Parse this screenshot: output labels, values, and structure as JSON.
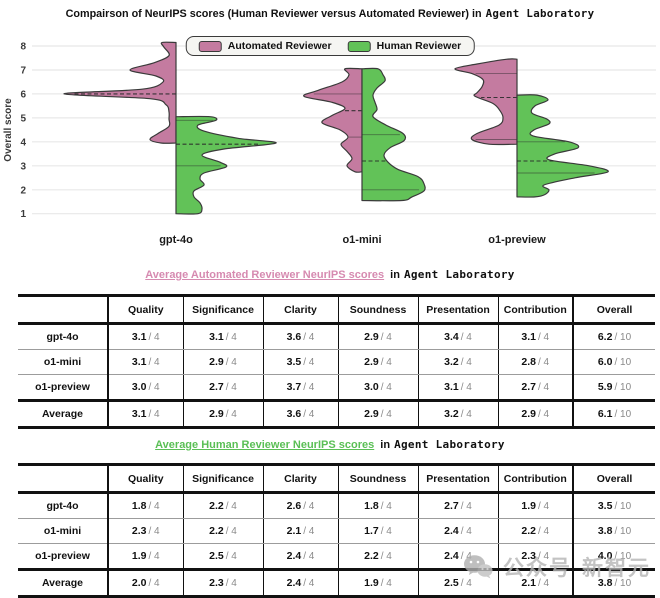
{
  "header": {
    "title_main": "Compairson of NeurIPS scores (Human Reviewer versus Automated Reviewer) in",
    "title_code": "Agent Laboratory"
  },
  "chart_data": {
    "type": "violin",
    "title": "Compairson of NeurIPS scores (Human Reviewer versus Automated Reviewer) in Agent Laboratory",
    "ylabel": "Overall score",
    "ylim": [
      1,
      8
    ],
    "yticks": [
      1,
      2,
      3,
      4,
      5,
      6,
      7,
      8
    ],
    "grid": true,
    "legend_position": "top-center",
    "categories": [
      "gpt-4o",
      "o1-mini",
      "o1-preview"
    ],
    "series": [
      {
        "name": "Automated Reviewer",
        "color": "#c47ba0",
        "side": "left"
      },
      {
        "name": "Human Reviewer",
        "color": "#62c258",
        "side": "right"
      }
    ],
    "violins": [
      {
        "category": "gpt-4o",
        "series": "Automated Reviewer",
        "profile": [
          [
            8.15,
            14
          ],
          [
            7.95,
            12
          ],
          [
            7.6,
            7
          ],
          [
            7.3,
            22
          ],
          [
            7.0,
            46
          ],
          [
            6.75,
            20
          ],
          [
            6.5,
            13
          ],
          [
            6.2,
            34
          ],
          [
            6.0,
            112
          ],
          [
            5.8,
            26
          ],
          [
            5.55,
            10
          ],
          [
            5.25,
            7
          ],
          [
            4.95,
            7
          ],
          [
            4.65,
            7
          ],
          [
            4.35,
            18
          ],
          [
            4.1,
            26
          ],
          [
            3.95,
            15
          ]
        ],
        "lines": [
          {
            "score": 6.0,
            "style": "dashed"
          }
        ]
      },
      {
        "category": "gpt-4o",
        "series": "Human Reviewer",
        "profile": [
          [
            5.05,
            34
          ],
          [
            4.9,
            40
          ],
          [
            4.7,
            22
          ],
          [
            4.45,
            28
          ],
          [
            4.15,
            62
          ],
          [
            3.95,
            100
          ],
          [
            3.7,
            48
          ],
          [
            3.45,
            26
          ],
          [
            3.15,
            44
          ],
          [
            2.95,
            50
          ],
          [
            2.7,
            28
          ],
          [
            2.45,
            24
          ],
          [
            2.2,
            28
          ],
          [
            1.95,
            18
          ],
          [
            1.7,
            18
          ],
          [
            1.45,
            24
          ],
          [
            1.2,
            26
          ],
          [
            1.0,
            22
          ]
        ],
        "lines": [
          {
            "score": 4.9,
            "style": "solid"
          },
          {
            "score": 3.9,
            "style": "dashed"
          },
          {
            "score": 3.0,
            "style": "solid"
          }
        ]
      },
      {
        "category": "o1-mini",
        "series": "Automated Reviewer",
        "profile": [
          [
            7.05,
            17
          ],
          [
            6.8,
            13
          ],
          [
            6.5,
            20
          ],
          [
            6.15,
            44
          ],
          [
            5.9,
            58
          ],
          [
            5.65,
            30
          ],
          [
            5.4,
            17
          ],
          [
            5.1,
            30
          ],
          [
            4.8,
            40
          ],
          [
            4.5,
            22
          ],
          [
            4.2,
            14
          ],
          [
            3.9,
            21
          ],
          [
            3.6,
            15
          ],
          [
            3.3,
            10
          ],
          [
            3.0,
            15
          ],
          [
            2.75,
            7
          ]
        ],
        "lines": [
          {
            "score": 6.0,
            "style": "solid"
          },
          {
            "score": 5.3,
            "style": "dashed"
          },
          {
            "score": 4.2,
            "style": "solid"
          }
        ]
      },
      {
        "category": "o1-mini",
        "series": "Human Reviewer",
        "profile": [
          [
            7.05,
            16
          ],
          [
            6.8,
            21
          ],
          [
            6.55,
            23
          ],
          [
            6.25,
            15
          ],
          [
            5.95,
            11
          ],
          [
            5.65,
            13
          ],
          [
            5.35,
            15
          ],
          [
            5.05,
            11
          ],
          [
            4.7,
            24
          ],
          [
            4.35,
            41
          ],
          [
            4.05,
            42
          ],
          [
            3.75,
            28
          ],
          [
            3.45,
            22
          ],
          [
            3.15,
            26
          ],
          [
            2.85,
            36
          ],
          [
            2.55,
            56
          ],
          [
            2.25,
            62
          ],
          [
            1.95,
            62
          ],
          [
            1.7,
            50
          ],
          [
            1.55,
            40
          ]
        ],
        "lines": [
          {
            "score": 4.3,
            "style": "solid"
          },
          {
            "score": 3.2,
            "style": "dashed"
          },
          {
            "score": 2.0,
            "style": "solid"
          }
        ]
      },
      {
        "category": "o1-preview",
        "series": "Automated Reviewer",
        "profile": [
          [
            7.45,
            10
          ],
          [
            7.25,
            40
          ],
          [
            7.05,
            62
          ],
          [
            6.85,
            45
          ],
          [
            6.6,
            34
          ],
          [
            6.3,
            35
          ],
          [
            6.05,
            40
          ],
          [
            5.9,
            42
          ],
          [
            5.6,
            24
          ],
          [
            5.3,
            17
          ],
          [
            5.0,
            14
          ],
          [
            4.7,
            18
          ],
          [
            4.35,
            40
          ],
          [
            4.1,
            45
          ],
          [
            3.9,
            28
          ]
        ],
        "lines": [
          {
            "score": 6.85,
            "style": "solid"
          },
          {
            "score": 5.85,
            "style": "dashed"
          },
          {
            "score": 4.1,
            "style": "solid"
          }
        ]
      },
      {
        "category": "o1-preview",
        "series": "Human Reviewer",
        "profile": [
          [
            5.95,
            20
          ],
          [
            5.75,
            31
          ],
          [
            5.5,
            18
          ],
          [
            5.2,
            15
          ],
          [
            4.95,
            30
          ],
          [
            4.75,
            32
          ],
          [
            4.5,
            17
          ],
          [
            4.25,
            16
          ],
          [
            4.0,
            52
          ],
          [
            3.75,
            61
          ],
          [
            3.5,
            38
          ],
          [
            3.25,
            32
          ],
          [
            3.0,
            72
          ],
          [
            2.75,
            91
          ],
          [
            2.5,
            58
          ],
          [
            2.2,
            27
          ],
          [
            2.0,
            32
          ],
          [
            1.8,
            28
          ],
          [
            1.7,
            18
          ]
        ],
        "lines": [
          {
            "score": 4.0,
            "style": "solid"
          },
          {
            "score": 3.2,
            "style": "dashed"
          },
          {
            "score": 2.7,
            "style": "solid"
          }
        ]
      }
    ]
  },
  "tables": [
    {
      "title_colored": "Average Automated Reviewer NeurIPS scores",
      "title_mid": "in",
      "title_code": "Agent Laboratory",
      "title_color": "#d68ab0",
      "columns": [
        "Quality",
        "Significance",
        "Clarity",
        "Soundness",
        "Presentation",
        "Contribution",
        "Overall"
      ],
      "denominators": [
        "/ 4",
        "/ 4",
        "/ 4",
        "/ 4",
        "/ 4",
        "/ 4",
        "/ 10"
      ],
      "rows": [
        {
          "label": "gpt-4o",
          "values": [
            "3.1",
            "3.1",
            "3.6",
            "2.9",
            "3.4",
            "3.1",
            "6.2"
          ]
        },
        {
          "label": "o1-mini",
          "values": [
            "3.1",
            "2.9",
            "3.5",
            "2.9",
            "3.2",
            "2.8",
            "6.0"
          ]
        },
        {
          "label": "o1-preview",
          "values": [
            "3.0",
            "2.7",
            "3.7",
            "3.0",
            "3.1",
            "2.7",
            "5.9"
          ]
        },
        {
          "label": "Average",
          "values": [
            "3.1",
            "2.9",
            "3.6",
            "2.9",
            "3.2",
            "2.9",
            "6.1"
          ],
          "is_summary": true
        }
      ]
    },
    {
      "title_colored": "Average Human Reviewer NeurIPS scores",
      "title_mid": "in",
      "title_code": "Agent Laboratory",
      "title_color": "#5abf55",
      "columns": [
        "Quality",
        "Significance",
        "Clarity",
        "Soundness",
        "Presentation",
        "Contribution",
        "Overall"
      ],
      "denominators": [
        "/ 4",
        "/ 4",
        "/ 4",
        "/ 4",
        "/ 4",
        "/ 4",
        "/ 10"
      ],
      "rows": [
        {
          "label": "gpt-4o",
          "values": [
            "1.8",
            "2.2",
            "2.6",
            "1.8",
            "2.7",
            "1.9",
            "3.5"
          ]
        },
        {
          "label": "o1-mini",
          "values": [
            "2.3",
            "2.2",
            "2.1",
            "1.7",
            "2.4",
            "2.2",
            "3.8"
          ]
        },
        {
          "label": "o1-preview",
          "values": [
            "1.9",
            "2.5",
            "2.4",
            "2.2",
            "2.4",
            "2.3",
            "4.0"
          ]
        },
        {
          "label": "Average",
          "values": [
            "2.0",
            "2.3",
            "2.4",
            "1.9",
            "2.5",
            "2.1",
            "3.8"
          ],
          "is_summary": true
        }
      ]
    }
  ],
  "watermark": {
    "icon": "wechat-icon",
    "text1": "公众号",
    "text2": "新智元"
  }
}
